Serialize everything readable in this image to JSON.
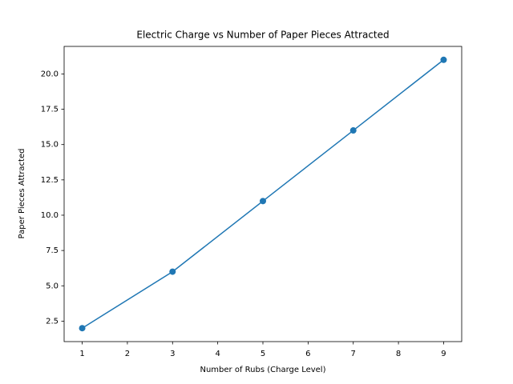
{
  "chart_data": {
    "type": "line",
    "title": "Electric Charge vs Number of Paper Pieces Attracted",
    "x_label": "Number of Rubs (Charge Level)",
    "y_label": "Paper Pieces Attracted",
    "x": [
      1,
      3,
      5,
      7,
      9
    ],
    "series": [
      {
        "name": "Paper Pieces Attracted",
        "color": "#1f77b4",
        "values": [
          2,
          6,
          11,
          16,
          21
        ]
      }
    ],
    "xlim": [
      0.6,
      9.4
    ],
    "ylim": [
      1.05,
      21.95
    ],
    "xticks": [
      1,
      2,
      3,
      4,
      5,
      6,
      7,
      8,
      9
    ],
    "yticks": [
      {
        "value": 2.5,
        "label": "2.5"
      },
      {
        "value": 5,
        "label": "5.0"
      },
      {
        "value": 7.5,
        "label": "7.5"
      },
      {
        "value": 10,
        "label": "10.0"
      },
      {
        "value": 12.5,
        "label": "12.5"
      },
      {
        "value": 15,
        "label": "15.0"
      },
      {
        "value": 17.5,
        "label": "17.5"
      },
      {
        "value": 20,
        "label": "20.0"
      }
    ],
    "grid": false
  }
}
